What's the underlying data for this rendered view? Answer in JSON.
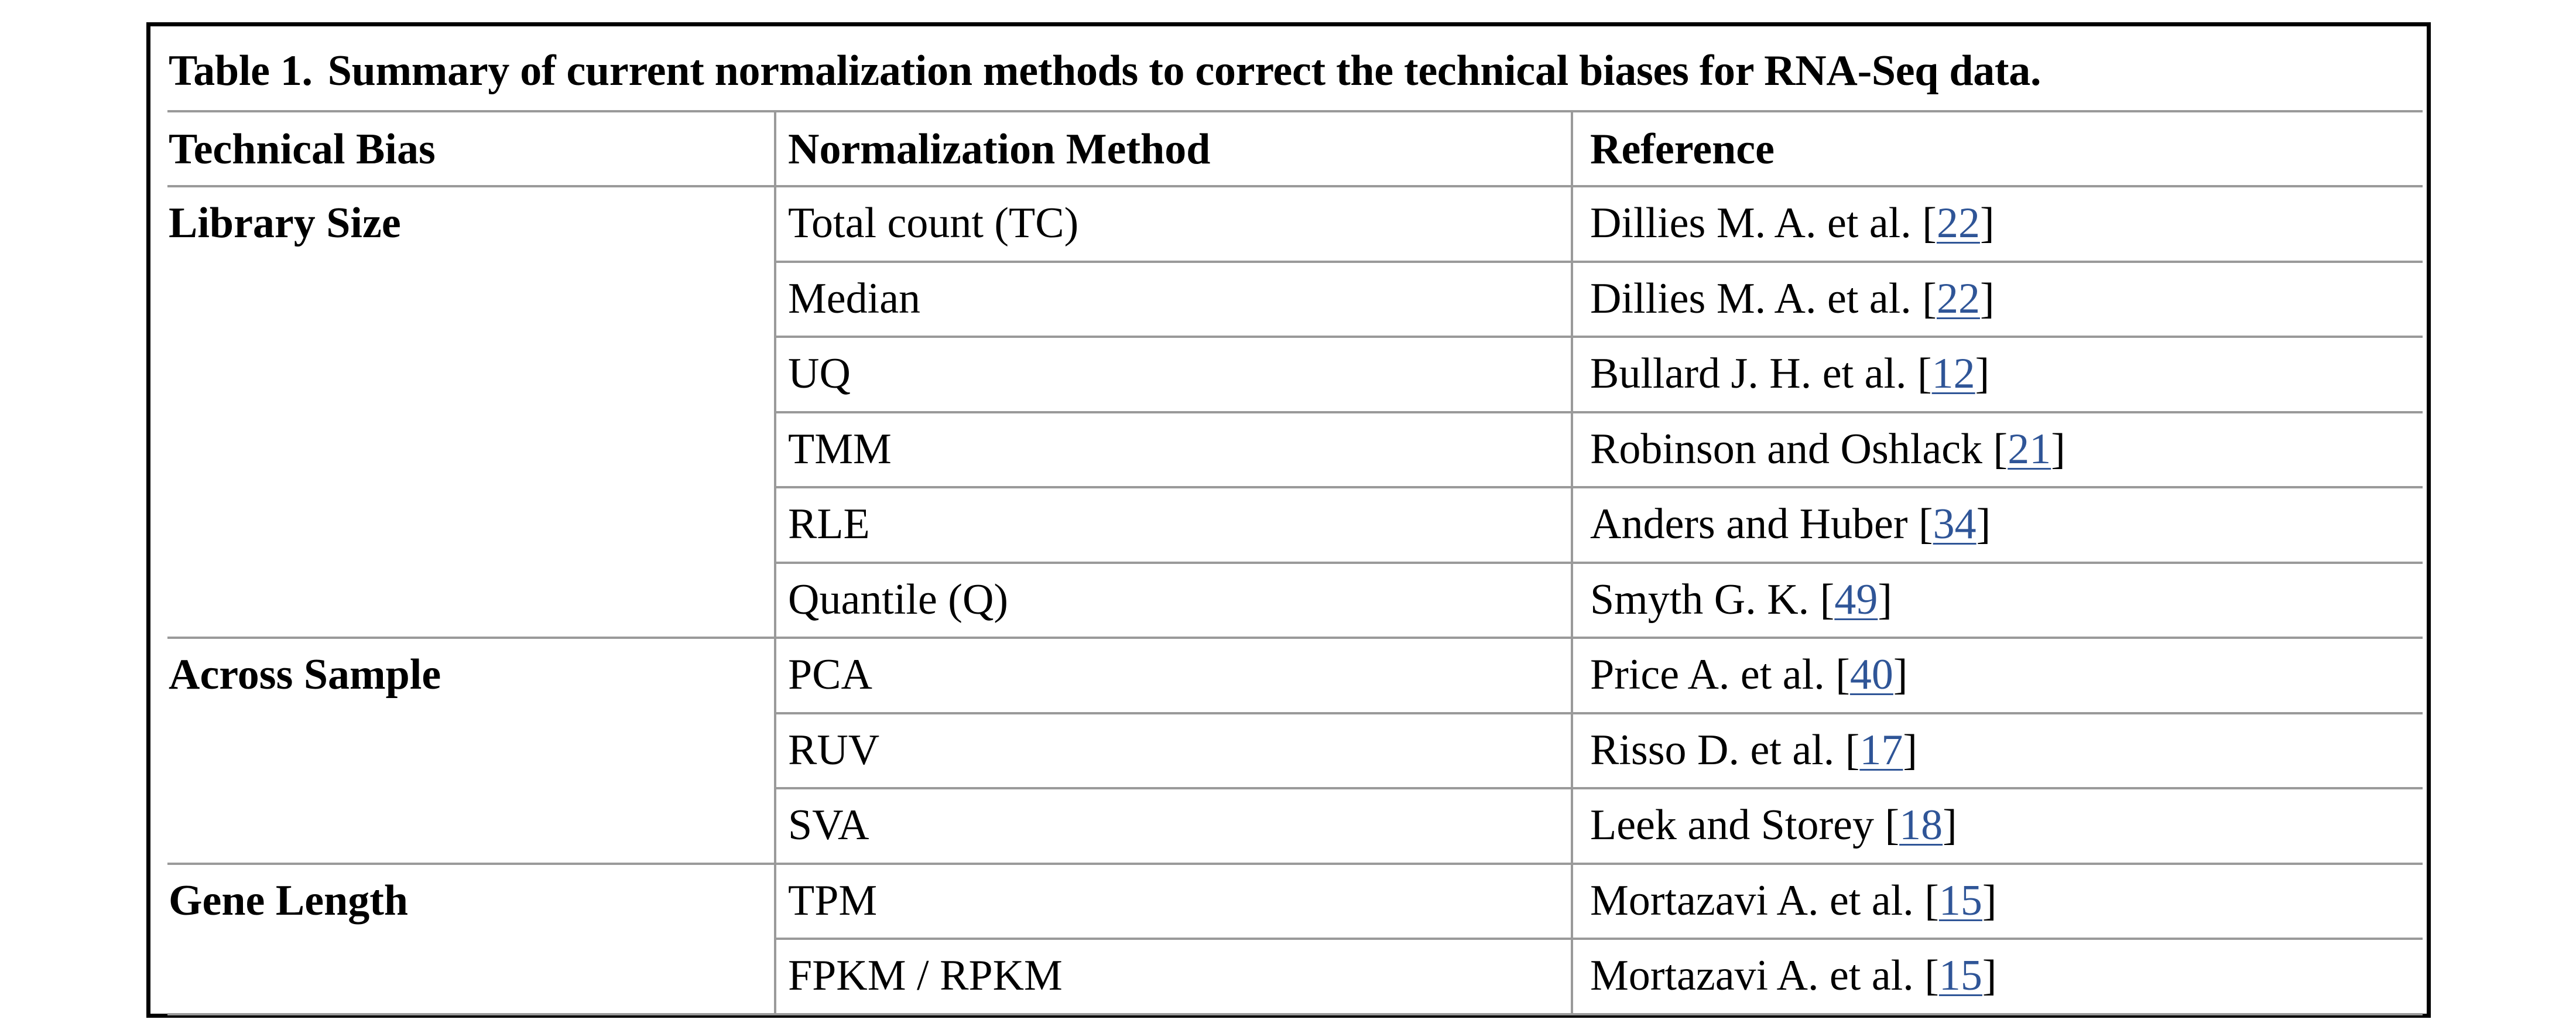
{
  "table": {
    "caption_number": "Table 1.",
    "caption_text": "Summary of current normalization methods to correct the technical biases for RNA-Seq data.",
    "headers": {
      "bias": "Technical Bias",
      "method": "Normalization Method",
      "reference": "Reference"
    },
    "groups": [
      {
        "bias": "Library Size",
        "rows": [
          {
            "method": "Total count (TC)",
            "ref_text": "Dillies M. A. et al.",
            "ref_num": "22"
          },
          {
            "method": "Median",
            "ref_text": "Dillies M. A. et al.",
            "ref_num": "22"
          },
          {
            "method": "UQ",
            "ref_text": "Bullard J. H. et al.",
            "ref_num": "12"
          },
          {
            "method": "TMM",
            "ref_text": "Robinson and Oshlack",
            "ref_num": "21"
          },
          {
            "method": "RLE",
            "ref_text": "Anders and Huber",
            "ref_num": "34"
          },
          {
            "method": "Quantile (Q)",
            "ref_text": "Smyth G. K.",
            "ref_num": "49"
          }
        ]
      },
      {
        "bias": "Across Sample",
        "rows": [
          {
            "method": "PCA",
            "ref_text": "Price A. et al.",
            "ref_num": "40"
          },
          {
            "method": "RUV",
            "ref_text": "Risso D. et al.",
            "ref_num": "17"
          },
          {
            "method": "SVA",
            "ref_text": "Leek and Storey",
            "ref_num": "18"
          }
        ]
      },
      {
        "bias": "Gene Length",
        "rows": [
          {
            "method": "TPM",
            "ref_text": "Mortazavi A. et al.",
            "ref_num": "15"
          },
          {
            "method": "FPKM / RPKM",
            "ref_text": "Mortazavi A. et al.",
            "ref_num": "15"
          }
        ]
      }
    ],
    "colors": {
      "link": "#2f5597",
      "rule": "#9a9a9a",
      "border": "#000000"
    }
  }
}
